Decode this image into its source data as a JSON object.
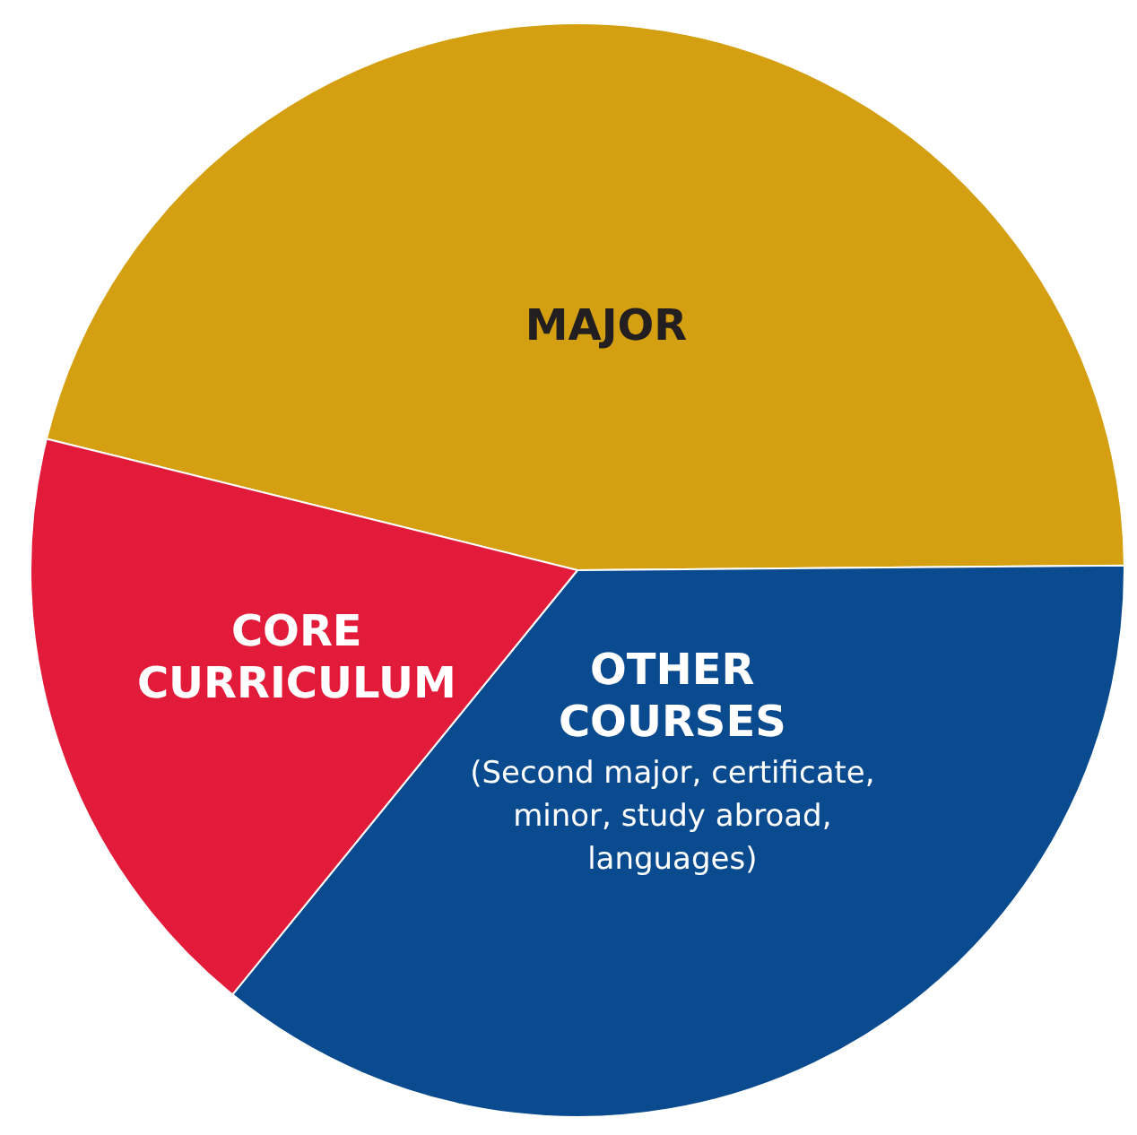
{
  "chart_data": {
    "type": "pie",
    "categories": [
      "MAJOR",
      "OTHER COURSES",
      "CORE CURRICULUM"
    ],
    "values": [
      46,
      36,
      18
    ],
    "colors": [
      "#d4a012",
      "#0a4a8f",
      "#e31b3a"
    ],
    "annotations": [
      "(Second major, certificate, minor, study abroad, languages)"
    ]
  }
}
